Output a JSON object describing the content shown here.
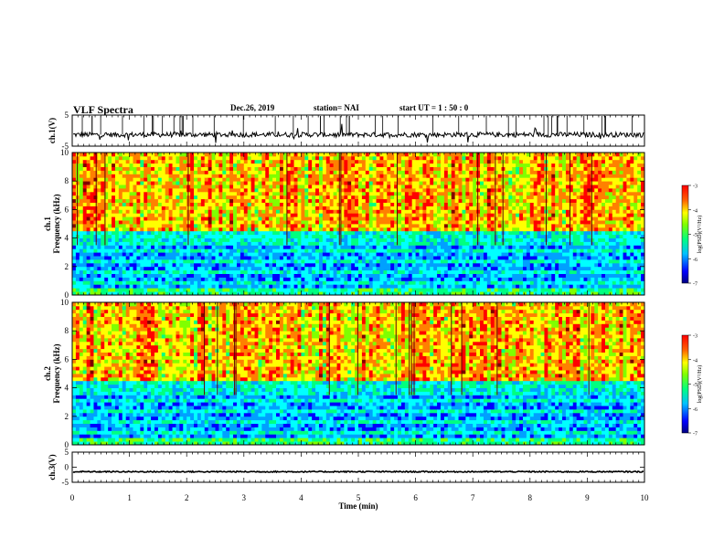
{
  "header": {
    "title": "VLF Spectra",
    "date": "Dec.26, 2019",
    "station": "station= NAI",
    "start_ut": "start  UT =   1 : 50 : 0"
  },
  "chart_data": [
    {
      "type": "line",
      "panel": "ch.1 waveform",
      "ylabel": "ch.1(V)",
      "ylim": [
        -5,
        5
      ],
      "yticks": [
        "5",
        "-5"
      ],
      "xlim": [
        0,
        10
      ],
      "baseline": -1.3,
      "grid": false
    },
    {
      "type": "heatmap",
      "panel": "ch.1 spectrogram",
      "ylabel": "ch.1\nFrequency (kHz)",
      "ylim": [
        0,
        10
      ],
      "yticks": [
        "0",
        "2",
        "4",
        "6",
        "8",
        "10"
      ],
      "xlim": [
        0,
        10
      ],
      "colorbar": {
        "label": "log(PSD)(V²/Hz)",
        "range": [
          -7,
          -3
        ],
        "ticks": [
          "-3",
          "-4",
          "-5",
          "-6",
          "-7"
        ]
      }
    },
    {
      "type": "heatmap",
      "panel": "ch.2 spectrogram",
      "ylabel": "ch.2\nFrequency (kHz)",
      "ylim": [
        0,
        10
      ],
      "yticks": [
        "0",
        "2",
        "4",
        "6",
        "8",
        "10"
      ],
      "xlim": [
        0,
        10
      ],
      "colorbar": {
        "label": "log(PSD)(V²/Hz)",
        "range": [
          -7,
          -3
        ],
        "ticks": [
          "-3",
          "-4",
          "-5",
          "-6",
          "-7"
        ]
      }
    },
    {
      "type": "line",
      "panel": "ch.3 waveform",
      "ylabel": "ch.3(V)",
      "ylim": [
        -5,
        5
      ],
      "yticks": [
        "5",
        "0",
        "-5"
      ],
      "xlim": [
        0,
        10
      ],
      "baseline": -1.5,
      "grid": false
    }
  ],
  "x_axis": {
    "label": "Time  (min)",
    "ticks": [
      "0",
      "1",
      "2",
      "3",
      "4",
      "5",
      "6",
      "7",
      "8",
      "9",
      "10"
    ]
  },
  "colors": {
    "colormap": [
      "#000080",
      "#0000ff",
      "#00a0ff",
      "#00ffff",
      "#00ff80",
      "#80ff00",
      "#ffff00",
      "#ff8000",
      "#ff0000",
      "#800000"
    ]
  }
}
